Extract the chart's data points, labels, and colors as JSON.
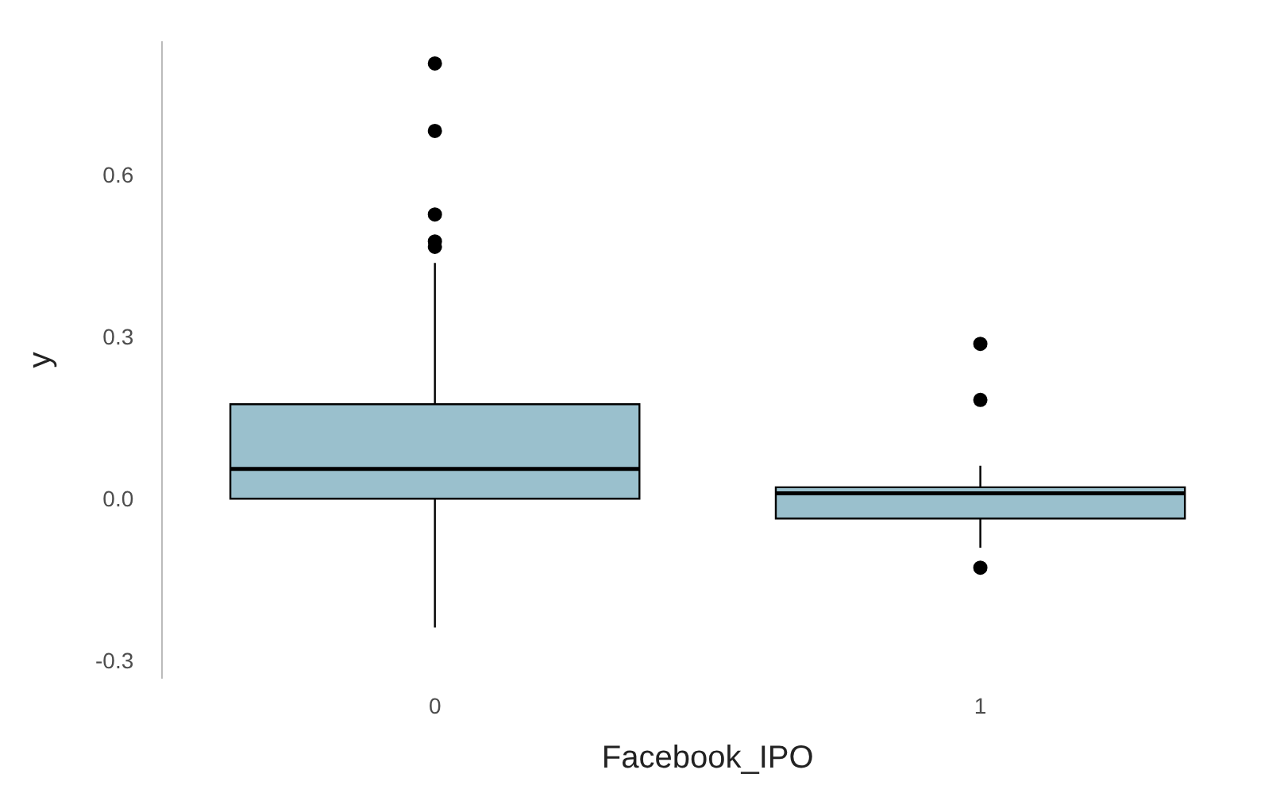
{
  "chart_data": {
    "type": "box",
    "xlabel": "Facebook_IPO",
    "ylabel": "y",
    "categories": [
      "0",
      "1"
    ],
    "color": "#9ac0cd",
    "boxes": [
      {
        "low": -0.236,
        "q1": 0.003,
        "median": 0.058,
        "q3": 0.178,
        "high": 0.44,
        "outliers": [
          0.81,
          0.685,
          0.53,
          0.48,
          0.47
        ]
      },
      {
        "low": -0.088,
        "q1": -0.034,
        "median": 0.013,
        "q3": 0.024,
        "high": 0.064,
        "outliers": [
          0.29,
          0.186,
          -0.125
        ]
      }
    ],
    "ylim": [
      -0.33,
      0.85
    ],
    "yticks": [
      {
        "value": -0.3,
        "label": "-0.3"
      },
      {
        "value": 0,
        "label": "0.0"
      },
      {
        "value": 0.3,
        "label": "0.3"
      },
      {
        "value": 0.6,
        "label": "0.6"
      }
    ],
    "grid": false,
    "legend": false,
    "marker": "circle"
  }
}
